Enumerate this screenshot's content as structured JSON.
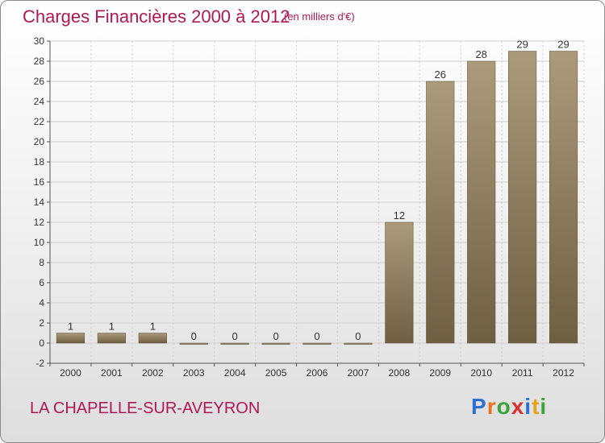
{
  "header": {
    "title": "Charges Financières 2000 à 2012",
    "unit": "(en milliers d'€)"
  },
  "footer": {
    "commune": "LA CHAPELLE-SUR-AVEYRON",
    "brand_letters": [
      "P",
      "r",
      "o",
      "x",
      "i",
      "t",
      "i"
    ],
    "brand_colors": [
      "#2e6fd1",
      "#e8731a",
      "#3aa33a",
      "#d63232",
      "#2e6fd1",
      "#e8a21a",
      "#3aa33a"
    ]
  },
  "chart_data": {
    "type": "bar",
    "title": "Charges Financières 2000 à 2012",
    "subtitle": "(en milliers d'€)",
    "categories": [
      "2000",
      "2001",
      "2002",
      "2003",
      "2004",
      "2005",
      "2006",
      "2007",
      "2008",
      "2009",
      "2010",
      "2011",
      "2012"
    ],
    "values": [
      1,
      1,
      1,
      0,
      0,
      0,
      0,
      0,
      12,
      26,
      28,
      29,
      29
    ],
    "ylim": [
      -2,
      30
    ],
    "yticks": [
      -2,
      0,
      2,
      4,
      6,
      8,
      10,
      12,
      14,
      16,
      18,
      20,
      22,
      24,
      26,
      28,
      30
    ],
    "grid": true,
    "legend": "none",
    "colors": {
      "bar_top": "#ab9a7c",
      "bar_bottom": "#6f5f42",
      "grid": "#cfcfcf",
      "axis": "#555555"
    }
  }
}
